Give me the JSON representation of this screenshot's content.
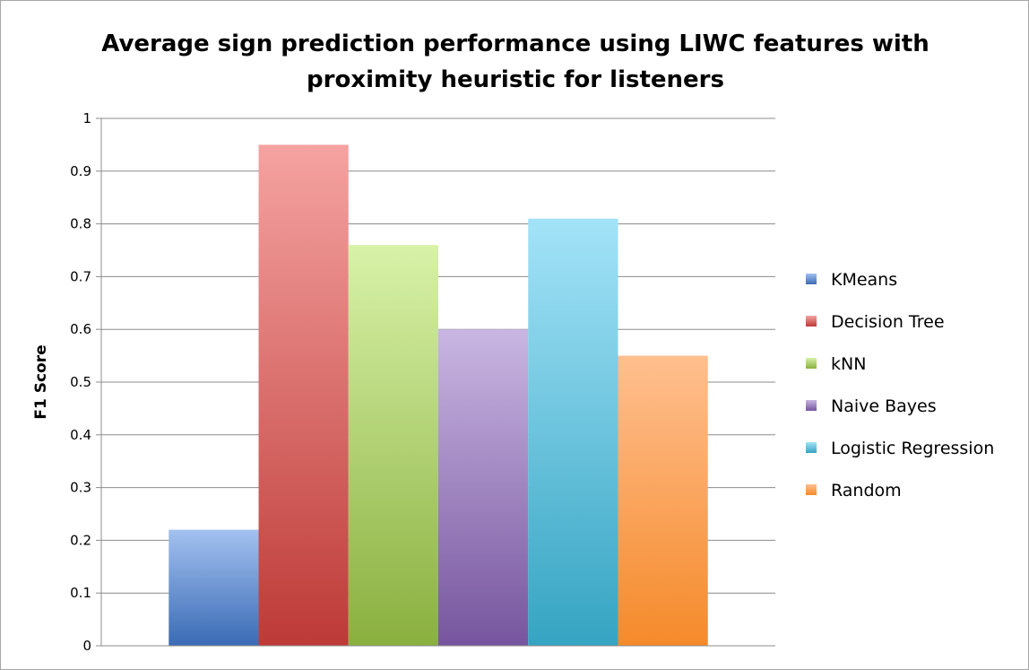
{
  "chart_data": {
    "type": "bar",
    "title_lines": [
      "Average sign prediction performance using LIWC features with",
      "proximity heuristic for listeners"
    ],
    "xlabel": "",
    "ylabel": "F1 Score",
    "ylim": [
      0,
      1
    ],
    "yticks": [
      "0",
      "0.1",
      "0.2",
      "0.3",
      "0.4",
      "0.5",
      "0.6",
      "0.7",
      "0.8",
      "0.9",
      "1"
    ],
    "grid": true,
    "legend_position": "right",
    "series": [
      {
        "name": "KMeans",
        "value": 0.22,
        "color": "#4a7ebb",
        "light": "#a3c1f0",
        "dark": "#3a6bb5"
      },
      {
        "name": "Decision Tree",
        "value": 0.95,
        "color": "#c0504d",
        "light": "#f5a3a1",
        "dark": "#bd3a37"
      },
      {
        "name": "kNN",
        "value": 0.76,
        "color": "#9bbb59",
        "light": "#d8f2a8",
        "dark": "#8ab03f"
      },
      {
        "name": "Naive Bayes",
        "value": 0.6,
        "color": "#8064a2",
        "light": "#c9b6e2",
        "dark": "#76559e"
      },
      {
        "name": "Logistic Regression",
        "value": 0.81,
        "color": "#4bacc6",
        "light": "#a3e3f8",
        "dark": "#35a4c2"
      },
      {
        "name": "Random",
        "value": 0.55,
        "color": "#f79646",
        "light": "#ffbf8f",
        "dark": "#f58a2a"
      }
    ]
  }
}
